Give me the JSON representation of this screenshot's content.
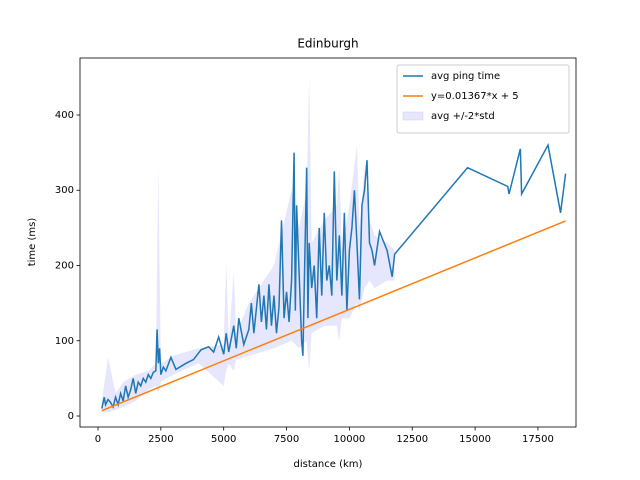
{
  "chart_data": {
    "type": "line",
    "title": "Edinburgh",
    "xlabel": "distance (km)",
    "ylabel": "time (ms)",
    "xlim": [
      -716,
      19014
    ],
    "ylim": [
      -14.6,
      475.7
    ],
    "xticks": [
      0,
      2500,
      5000,
      7500,
      10000,
      12500,
      15000,
      17500
    ],
    "yticks": [
      0,
      100,
      200,
      300,
      400
    ],
    "legend": "upper right",
    "series": [
      {
        "name": "avg ping time",
        "color": "#1f77b4",
        "x": [
          150,
          250,
          300,
          400,
          500,
          600,
          700,
          800,
          900,
          1000,
          1100,
          1200,
          1300,
          1400,
          1500,
          1600,
          1700,
          1800,
          1900,
          2000,
          2100,
          2200,
          2300,
          2350,
          2400,
          2450,
          2500,
          2600,
          2700,
          2900,
          3100,
          3500,
          3800,
          4100,
          4400,
          4600,
          4800,
          5000,
          5100,
          5200,
          5400,
          5500,
          5600,
          5800,
          6000,
          6100,
          6200,
          6400,
          6500,
          6600,
          6700,
          6800,
          6900,
          7000,
          7100,
          7200,
          7300,
          7400,
          7500,
          7600,
          7700,
          7800,
          7850,
          7900,
          8000,
          8100,
          8150,
          8200,
          8300,
          8350,
          8400,
          8500,
          8600,
          8700,
          8800,
          8900,
          9000,
          9100,
          9200,
          9300,
          9400,
          9500,
          9600,
          9700,
          9800,
          9900,
          10000,
          10100,
          10200,
          10300,
          10400,
          10500,
          10600,
          10700,
          10800,
          10900,
          11000,
          11200,
          11500,
          11700,
          11800,
          14700,
          16300,
          16350,
          16800,
          16850,
          17900,
          18400,
          18600
        ],
        "values": [
          10,
          25,
          15,
          22,
          18,
          12,
          25,
          15,
          30,
          20,
          40,
          25,
          35,
          50,
          30,
          45,
          40,
          50,
          45,
          55,
          50,
          58,
          60,
          115,
          70,
          90,
          55,
          65,
          60,
          78,
          62,
          70,
          75,
          88,
          92,
          85,
          105,
          82,
          110,
          85,
          120,
          90,
          130,
          95,
          115,
          150,
          110,
          175,
          125,
          160,
          115,
          175,
          120,
          160,
          110,
          145,
          260,
          130,
          165,
          125,
          180,
          350,
          140,
          280,
          190,
          100,
          80,
          165,
          330,
          130,
          230,
          170,
          200,
          130,
          250,
          160,
          270,
          180,
          200,
          160,
          325,
          180,
          240,
          160,
          270,
          140,
          220,
          250,
          300,
          230,
          155,
          280,
          300,
          340,
          230,
          220,
          200,
          245,
          220,
          185,
          215,
          330,
          305,
          295,
          355,
          295,
          360,
          270,
          322
        ]
      },
      {
        "name": "y=0.01367*x + 5",
        "color": "#ff7f0e",
        "x": [
          150,
          18600
        ],
        "values": [
          7.05,
          259.26
        ]
      }
    ],
    "band": {
      "name": "avg +/-2*std",
      "color": "#e6e6fc",
      "x": [
        150,
        400,
        700,
        1000,
        1500,
        2000,
        2300,
        2400,
        2500,
        3000,
        4000,
        5000,
        5100,
        5200,
        5400,
        5500,
        6000,
        7000,
        7700,
        8000,
        8300,
        8400,
        8500,
        9000,
        9500,
        9600,
        9700,
        10000,
        10300,
        10400,
        10600,
        10800,
        11000,
        11500,
        11800
      ],
      "upper": [
        20,
        78,
        30,
        45,
        55,
        60,
        70,
        330,
        70,
        80,
        90,
        95,
        205,
        100,
        190,
        110,
        150,
        200,
        300,
        250,
        300,
        453,
        230,
        260,
        280,
        330,
        220,
        280,
        360,
        250,
        330,
        260,
        240,
        230,
        220
      ],
      "lower": [
        5,
        5,
        8,
        12,
        20,
        35,
        40,
        30,
        45,
        55,
        70,
        40,
        60,
        70,
        60,
        75,
        80,
        90,
        100,
        90,
        100,
        60,
        110,
        120,
        120,
        100,
        130,
        130,
        150,
        140,
        170,
        180,
        170,
        180,
        180
      ]
    }
  }
}
